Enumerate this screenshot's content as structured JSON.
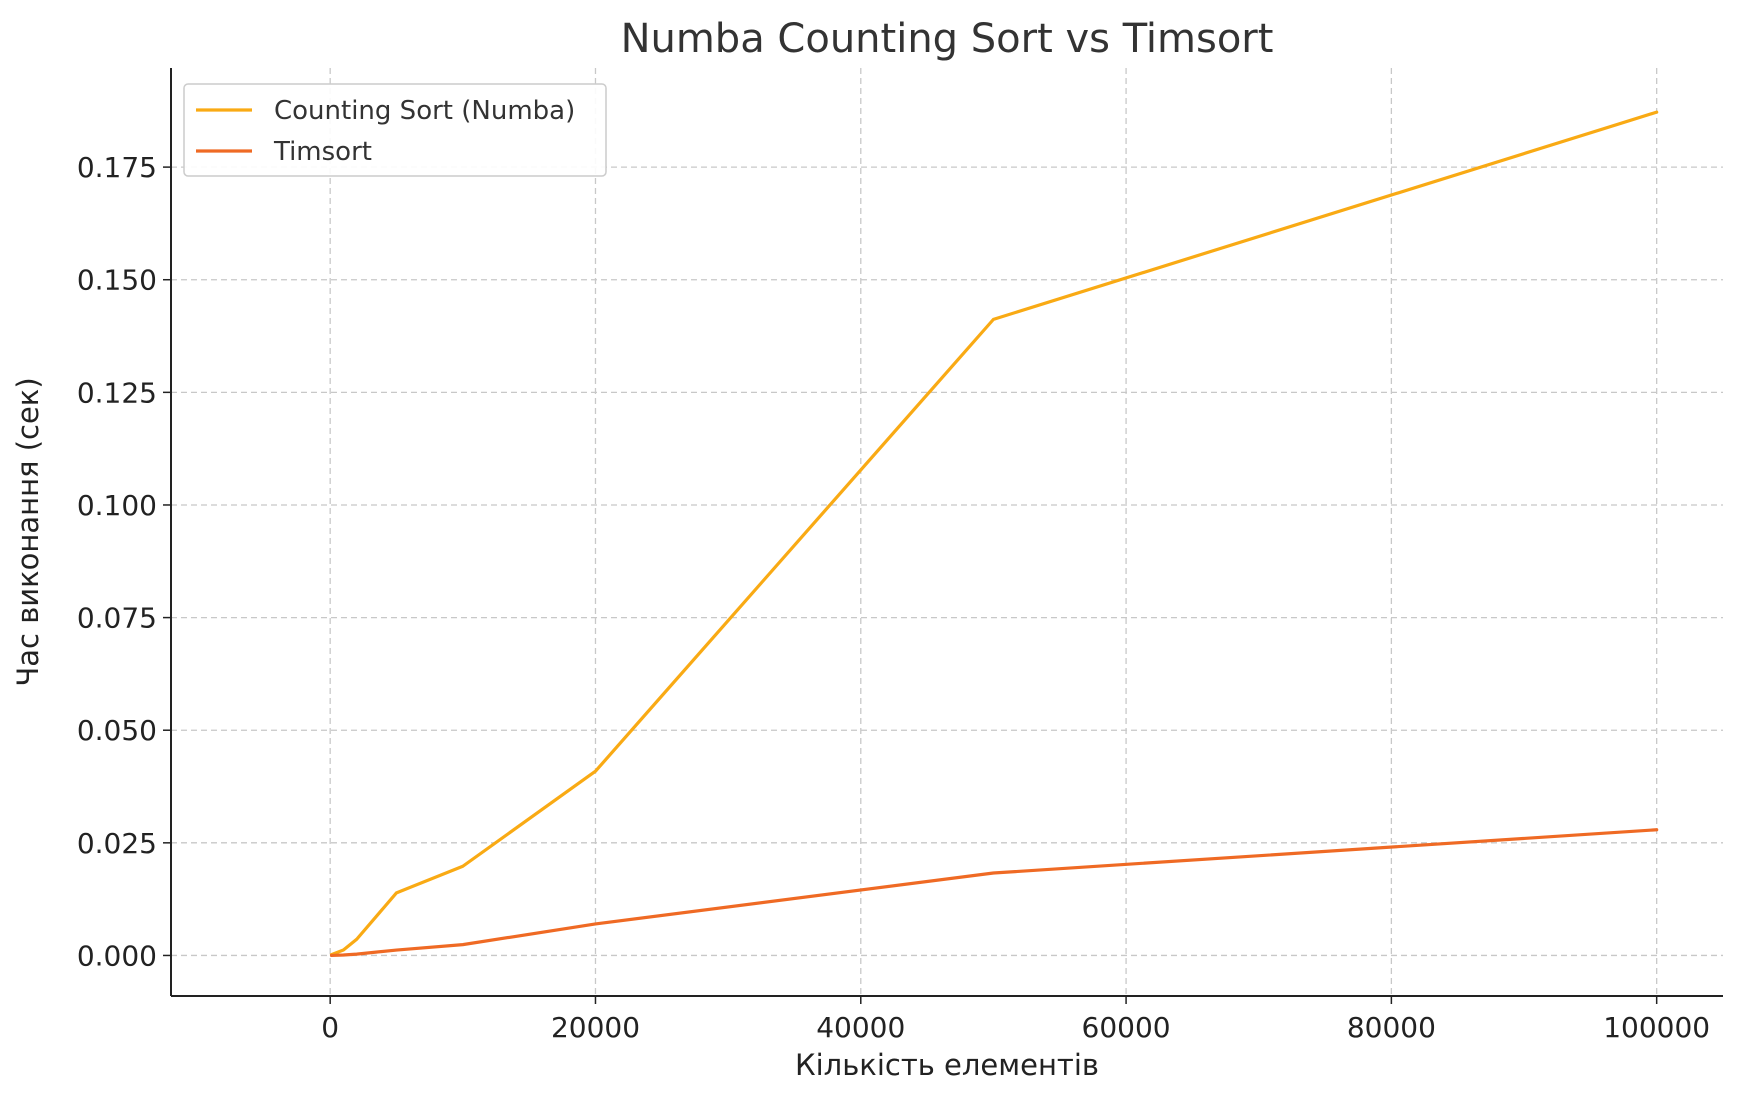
{
  "chart_data": {
    "type": "line",
    "title": "Numba Counting Sort vs Timsort",
    "xlabel": "Кількість елементів",
    "ylabel": "Час виконання (сек)",
    "xlim": [
      -12000,
      105000
    ],
    "ylim": [
      -0.009,
      0.197
    ],
    "x_ticks": [
      0,
      20000,
      40000,
      60000,
      80000,
      100000
    ],
    "x_tick_labels": [
      "0",
      "20000",
      "40000",
      "60000",
      "80000",
      "100000"
    ],
    "y_ticks": [
      0.0,
      0.025,
      0.05,
      0.075,
      0.1,
      0.125,
      0.15,
      0.175
    ],
    "y_tick_labels": [
      "0.000",
      "0.025",
      "0.050",
      "0.075",
      "0.100",
      "0.125",
      "0.150",
      "0.175"
    ],
    "grid": true,
    "legend_position": "top-left",
    "series": [
      {
        "name": "Counting Sort (Numba)",
        "color": "#f9aa14",
        "x": [
          100,
          1000,
          2000,
          5000,
          10000,
          20000,
          50000,
          100000
        ],
        "y": [
          0.0002,
          0.0012,
          0.0036,
          0.0139,
          0.0198,
          0.0409,
          0.1412,
          0.1872
        ]
      },
      {
        "name": "Timsort",
        "color": "#ef6a24",
        "x": [
          100,
          1000,
          2000,
          5000,
          10000,
          20000,
          50000,
          100000
        ],
        "y": [
          0.0,
          0.0001,
          0.0003,
          0.0012,
          0.0024,
          0.007,
          0.0183,
          0.0279
        ]
      }
    ]
  }
}
